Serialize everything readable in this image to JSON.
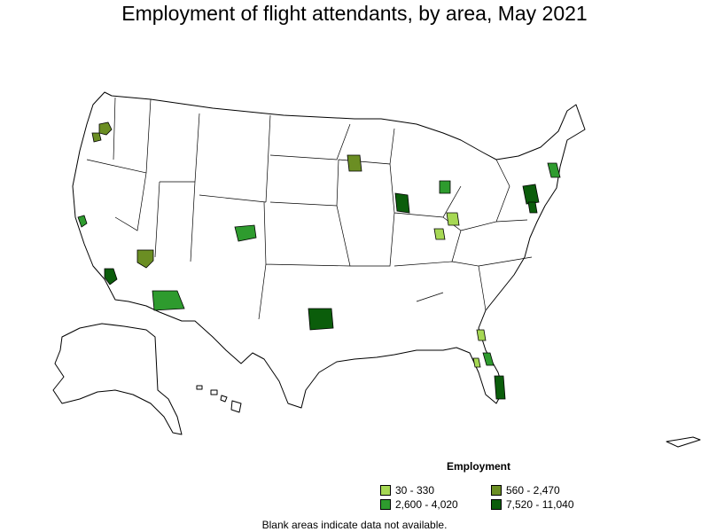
{
  "title": "Employment of flight attendants, by area, May 2021",
  "legend": {
    "title": "Employment",
    "items": [
      {
        "label": "30 - 330",
        "color": "#a6d854"
      },
      {
        "label": "560 - 2,470",
        "color": "#6b8e23"
      },
      {
        "label": "2,600 - 4,020",
        "color": "#2e9b2e"
      },
      {
        "label": "7,520 - 11,040",
        "color": "#0b5d0b"
      }
    ]
  },
  "note": "Blank areas indicate data not available."
}
